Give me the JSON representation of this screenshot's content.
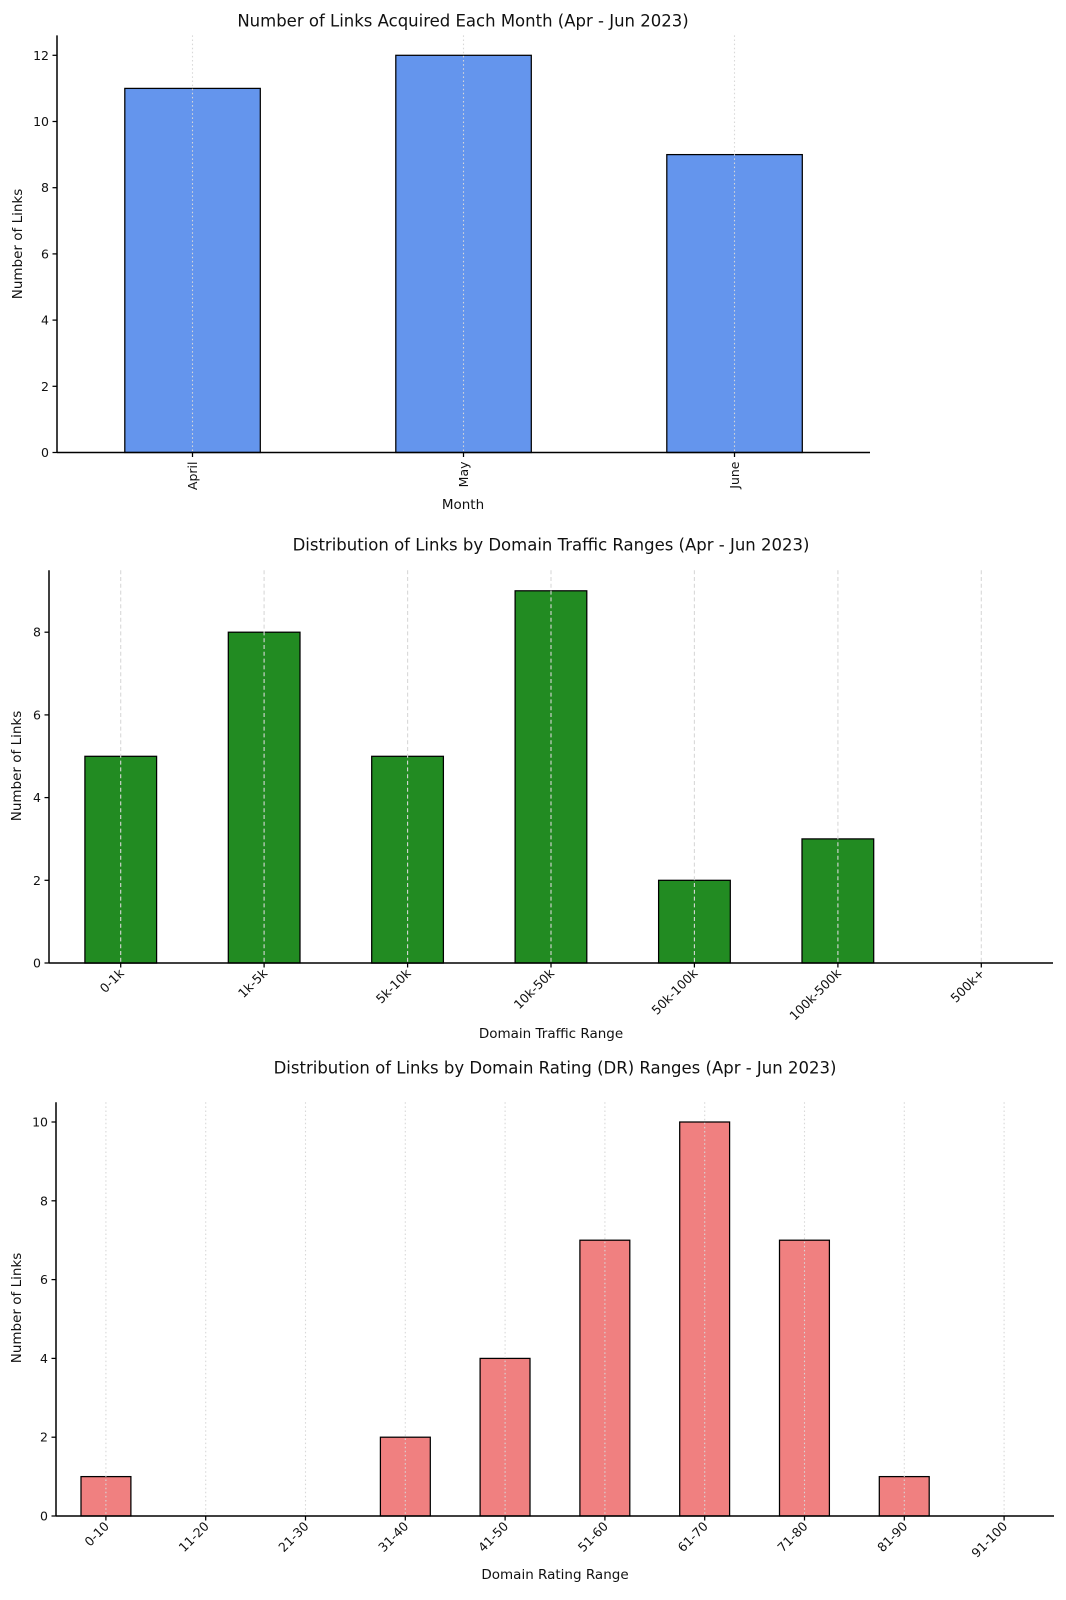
{
  "page": {
    "background": "#ffffff"
  },
  "chart_data": [
    {
      "type": "bar",
      "title": "Number of Links Acquired Each Month (Apr - Jun 2023)",
      "xlabel": "Month",
      "ylabel": "Number of Links",
      "categories": [
        "April",
        "May",
        "June"
      ],
      "values": [
        11,
        12,
        9
      ],
      "yticks": [
        0,
        2,
        4,
        6,
        8,
        10,
        12
      ],
      "ylim": [
        0,
        12.6
      ],
      "bar_color": "#6495ed",
      "bar_edge_color": "#000000",
      "grid": "dotted",
      "grid_axis": "x",
      "legend": "none",
      "xtick_rotation": -90
    },
    {
      "type": "bar",
      "title": "Distribution of Links by Domain Traffic Ranges (Apr - Jun 2023)",
      "xlabel": "Domain Traffic Range",
      "ylabel": "Number of Links",
      "categories": [
        "0-1k",
        "1k-5k",
        "5k-10k",
        "10k-50k",
        "50k-100k",
        "100k-500k",
        "500k+"
      ],
      "values": [
        5,
        8,
        5,
        9,
        2,
        3,
        0
      ],
      "yticks": [
        0,
        2,
        4,
        6,
        8
      ],
      "ylim": [
        0,
        9.5
      ],
      "bar_color": "#228b22",
      "bar_edge_color": "#000000",
      "grid": "dashed",
      "grid_axis": "x",
      "legend": "none",
      "xtick_rotation": -45
    },
    {
      "type": "bar",
      "title": "Distribution of Links by Domain Rating (DR) Ranges (Apr - Jun 2023)",
      "xlabel": "Domain Rating Range",
      "ylabel": "Number of Links",
      "categories": [
        "0-10",
        "11-20",
        "21-30",
        "31-40",
        "41-50",
        "51-60",
        "61-70",
        "71-80",
        "81-90",
        "91-100"
      ],
      "values": [
        1,
        0,
        0,
        2,
        4,
        7,
        10,
        7,
        1,
        0
      ],
      "yticks": [
        0,
        2,
        4,
        6,
        8,
        10
      ],
      "ylim": [
        0,
        10.5
      ],
      "bar_color": "#f08080",
      "bar_edge_color": "#000000",
      "grid": "dotted",
      "grid_axis": "x",
      "legend": "none",
      "xtick_rotation": -45
    }
  ]
}
